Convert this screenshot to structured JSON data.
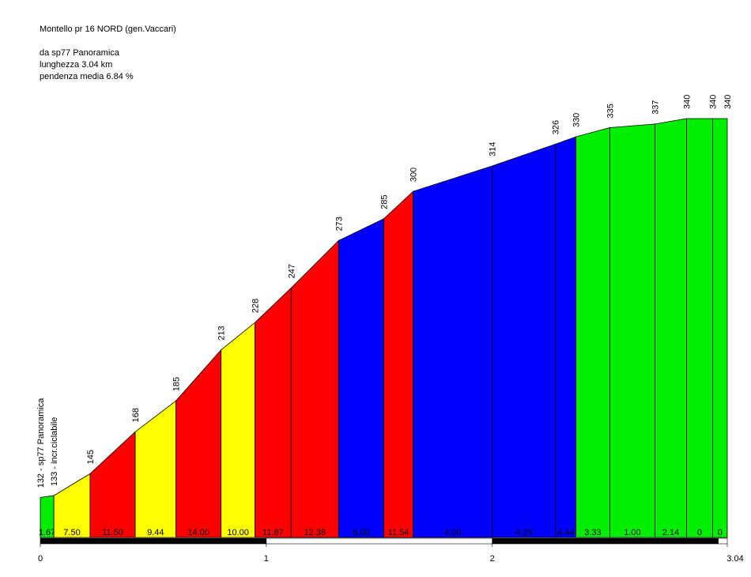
{
  "chart_data": {
    "type": "elevation-profile",
    "title": "Montello pr 16 NORD (gen.Vaccari)",
    "subtitle": [
      "da sp77 Panoramica",
      "lunghezza 3.04 km",
      "pendenza media 6.84 %"
    ],
    "x": [
      0,
      0.06,
      0.22,
      0.42,
      0.6,
      0.8,
      0.95,
      1.11,
      1.32,
      1.52,
      1.65,
      2.0,
      2.28,
      2.37,
      2.52,
      2.72,
      2.86,
      2.975,
      3.04
    ],
    "elevations": [
      132,
      133,
      145,
      168,
      185,
      213,
      228,
      247,
      273,
      285,
      300,
      314,
      326,
      330,
      335,
      337,
      340,
      340,
      340
    ],
    "value_labels": [
      "132 - sp77 Panoramica",
      "133 - incr.ciclabile",
      "145",
      "168",
      "185",
      "213",
      "228",
      "247",
      "273",
      "285",
      "300",
      "314",
      "326",
      "330",
      "335",
      "337",
      "340",
      "340",
      "340"
    ],
    "grades": [
      1.67,
      7.5,
      11.5,
      9.44,
      14,
      10,
      11.87,
      12.38,
      6,
      11.54,
      4,
      4.29,
      4.44,
      3.33,
      1,
      2.14,
      0,
      0
    ],
    "grade_labels": [
      "1.67",
      "7.50",
      "11.50",
      "9.44",
      "14.00",
      "10.00",
      "11.87",
      "12.38",
      "6.00",
      "11.54",
      "4.00",
      "4.29",
      "4.44",
      "3.33",
      "1.00",
      "2.14",
      "0",
      "0"
    ],
    "colors": [
      "#00ee00",
      "#ffff00",
      "#ff0000",
      "#ffff00",
      "#ff0000",
      "#ffff00",
      "#ff0000",
      "#ff0000",
      "#0000ff",
      "#ff0000",
      "#0000ff",
      "#0000ff",
      "#0000ff",
      "#00ee00",
      "#00ee00",
      "#00ee00",
      "#00ee00",
      "#00ee00"
    ],
    "xlim": [
      0,
      3.04
    ],
    "xticks": [
      0,
      1,
      2,
      3.04
    ],
    "ylim": [
      110,
      340
    ]
  }
}
